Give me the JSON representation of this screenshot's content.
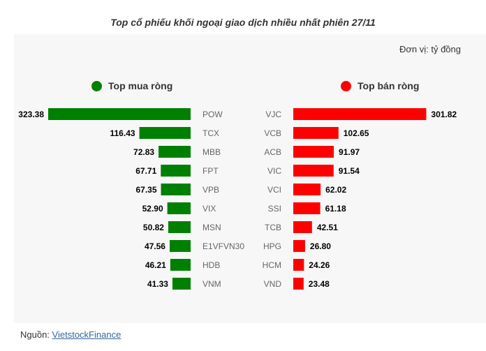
{
  "chart_data": {
    "type": "bar",
    "title": "Top cổ phiếu khối ngoại giao dịch nhiều nhất phiên 27/11",
    "unit_label": "Đơn vị: tỷ đồng",
    "series": [
      {
        "name": "Top mua ròng",
        "color": "#008000",
        "categories": [
          "POW",
          "TCX",
          "MBB",
          "FPT",
          "VPB",
          "VIX",
          "MSN",
          "E1VFVN30",
          "HDB",
          "VNM"
        ],
        "values": [
          323.38,
          116.43,
          72.83,
          67.71,
          67.35,
          52.9,
          50.82,
          47.56,
          46.21,
          41.33
        ],
        "value_labels": [
          "323.38",
          "116.43",
          "72.83",
          "67.71",
          "67.35",
          "52.90",
          "50.82",
          "47.56",
          "46.21",
          "41.33"
        ]
      },
      {
        "name": "Top bán ròng",
        "color": "#ff0000",
        "categories": [
          "VJC",
          "VCB",
          "ACB",
          "VIC",
          "VCI",
          "SSI",
          "TCB",
          "HPG",
          "HCM",
          "VND"
        ],
        "values": [
          301.82,
          102.65,
          91.97,
          91.54,
          62.02,
          61.18,
          42.51,
          26.8,
          24.26,
          23.48
        ],
        "value_labels": [
          "301.82",
          "102.65",
          "91.97",
          "91.54",
          "62.02",
          "61.18",
          "42.51",
          "26.80",
          "24.26",
          "23.48"
        ]
      }
    ]
  },
  "source": {
    "label": "Nguồn: ",
    "link_text": "VietstockFinance"
  }
}
